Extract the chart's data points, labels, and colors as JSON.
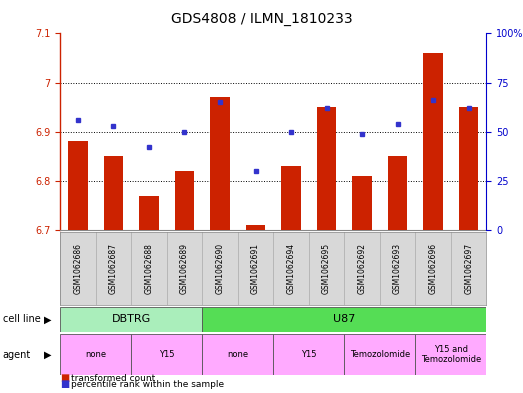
{
  "title": "GDS4808 / ILMN_1810233",
  "samples": [
    "GSM1062686",
    "GSM1062687",
    "GSM1062688",
    "GSM1062689",
    "GSM1062690",
    "GSM1062691",
    "GSM1062694",
    "GSM1062695",
    "GSM1062692",
    "GSM1062693",
    "GSM1062696",
    "GSM1062697"
  ],
  "bar_values": [
    6.88,
    6.85,
    6.77,
    6.82,
    6.97,
    6.71,
    6.83,
    6.95,
    6.81,
    6.85,
    7.06,
    6.95
  ],
  "bar_base": 6.7,
  "blue_values": [
    56,
    53,
    42,
    50,
    65,
    30,
    50,
    62,
    49,
    54,
    66,
    62
  ],
  "ylim_left": [
    6.7,
    7.1
  ],
  "ylim_right": [
    0,
    100
  ],
  "yticks_left": [
    6.7,
    6.8,
    6.9,
    7.0,
    7.1
  ],
  "ytick_labels_left": [
    "6.7",
    "6.8",
    "6.9",
    "7",
    "7.1"
  ],
  "yticks_right": [
    0,
    25,
    50,
    75,
    100
  ],
  "ytick_labels_right": [
    "0",
    "25",
    "50",
    "75",
    "100%"
  ],
  "bar_color": "#cc2200",
  "blue_color": "#3333cc",
  "cell_line_bg": "#d0d0d0",
  "cell_line_DBTRG_color": "#aaeebb",
  "cell_line_U87_color": "#55dd55",
  "agent_color": "#ffaaff",
  "bg_color": "#ffffff",
  "tick_color_left": "#cc2200",
  "tick_color_right": "#0000cc",
  "title_fontsize": 10,
  "bar_label_fontsize": 6,
  "legend_fontsize": 7
}
